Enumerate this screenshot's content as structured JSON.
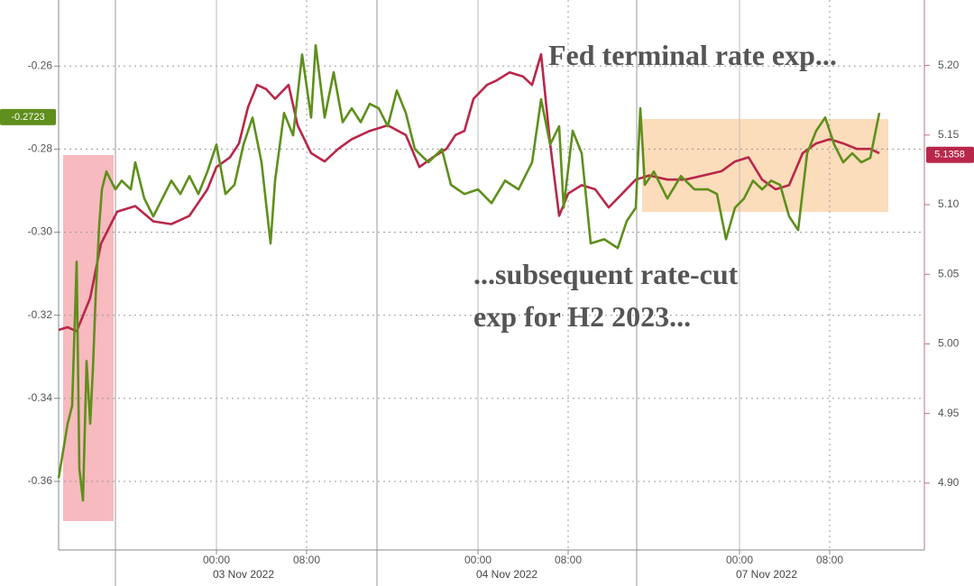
{
  "chart_data": {
    "type": "line",
    "xlim": [
      0,
      96
    ],
    "xticks": [
      {
        "value": 17.5,
        "label": "00:00"
      },
      {
        "value": 27.5,
        "label": "08:00"
      },
      {
        "value": 46.5,
        "label": "00:00"
      },
      {
        "value": 56.5,
        "label": "08:00"
      },
      {
        "value": 75.5,
        "label": "00:00"
      },
      {
        "value": 85.5,
        "label": "08:00"
      }
    ],
    "x_dates": [
      "03 Nov 2022",
      "04 Nov 2022",
      "07 Nov 2022"
    ],
    "ylim": [
      -0.3765,
      -0.2441
    ],
    "yticks": [
      -0.36,
      -0.34,
      -0.32,
      {
        "value": -0.3,
        "label": "-0.30"
      },
      -0.28,
      -0.26
    ],
    "y2lim": [
      4.852,
      5.247
    ],
    "y2ticks": [
      {
        "value": 4.9,
        "label": "4.90"
      },
      4.95,
      {
        "value": 5,
        "label": "5.00"
      },
      5.05,
      {
        "value": 5.1,
        "label": "5.10"
      },
      5.15,
      {
        "value": 5.2,
        "label": "5.20"
      }
    ],
    "grid": true,
    "series": [
      {
        "color": "#b8274a",
        "axis": "y2",
        "last_value": 5.1358,
        "x": [
          0,
          1,
          2,
          3.5,
          4.7,
          6.5,
          8.5,
          10.5,
          12.5,
          14.5,
          16.5,
          17.5,
          19,
          20,
          21,
          22,
          23,
          24,
          25.5,
          26.5,
          28,
          29.5,
          31,
          32.5,
          34.5,
          36.5,
          38.5,
          40,
          41.5,
          43,
          44,
          45,
          46,
          47.5,
          48.5,
          50,
          51.5,
          52.5,
          53.5,
          54.5,
          55.5,
          56.5,
          58,
          59.5,
          61,
          62.5,
          64,
          65.5,
          67.5,
          69.5,
          71.5,
          73.5,
          75,
          76.5,
          78,
          79.5,
          81,
          82.5,
          84,
          85.5,
          87,
          88.5,
          90,
          91
        ],
        "values": [
          5.01,
          5.012,
          5.009,
          5.033,
          5.072,
          5.095,
          5.099,
          5.088,
          5.086,
          5.092,
          5.111,
          5.127,
          5.134,
          5.144,
          5.17,
          5.186,
          5.183,
          5.176,
          5.186,
          5.157,
          5.137,
          5.131,
          5.14,
          5.147,
          5.153,
          5.157,
          5.15,
          5.127,
          5.134,
          5.14,
          5.15,
          5.153,
          5.176,
          5.186,
          5.189,
          5.195,
          5.192,
          5.186,
          5.208,
          5.144,
          5.092,
          5.108,
          5.114,
          5.111,
          5.098,
          5.108,
          5.118,
          5.121,
          5.118,
          5.118,
          5.121,
          5.124,
          5.131,
          5.134,
          5.118,
          5.111,
          5.114,
          5.137,
          5.144,
          5.147,
          5.144,
          5.14,
          5.14,
          5.137
        ]
      },
      {
        "color": "#5f8f1c",
        "last_value": -0.2723,
        "x": [
          0,
          0.5,
          1,
          1.5,
          2,
          2.3,
          2.7,
          3.1,
          3.5,
          3.8,
          4.1,
          4.5,
          4.8,
          5.3,
          5.8,
          6.3,
          7,
          8,
          8.5,
          9.5,
          10.5,
          11.5,
          12.5,
          13.5,
          14.5,
          15.5,
          16.5,
          17.5,
          18.5,
          19.5,
          20.5,
          21.5,
          22.5,
          23.5,
          24,
          25,
          26,
          27,
          28,
          28.5,
          29.5,
          30.5,
          31.5,
          32.5,
          33.5,
          34.5,
          35.5,
          36.5,
          37.5,
          38.5,
          39.5,
          41,
          42.5,
          43.5,
          45,
          46.5,
          48,
          49.5,
          51,
          52.5,
          53.5,
          54.5,
          55.5,
          56,
          57,
          58,
          59,
          60.5,
          62,
          63,
          64,
          64.5,
          65,
          66,
          67.5,
          69,
          70.5,
          72,
          73,
          74,
          75,
          76,
          77,
          78,
          79,
          80,
          81,
          82,
          83,
          84,
          85,
          86,
          87,
          88,
          89,
          90,
          91
        ],
        "values": [
          -0.3592,
          -0.3527,
          -0.3461,
          -0.3418,
          -0.3071,
          -0.357,
          -0.3646,
          -0.331,
          -0.3461,
          -0.3331,
          -0.3158,
          -0.2984,
          -0.2897,
          -0.2854,
          -0.2876,
          -0.2897,
          -0.2876,
          -0.2897,
          -0.2832,
          -0.2919,
          -0.2962,
          -0.2919,
          -0.2876,
          -0.2908,
          -0.2865,
          -0.2908,
          -0.2854,
          -0.2789,
          -0.2908,
          -0.2886,
          -0.2789,
          -0.2724,
          -0.2832,
          -0.3027,
          -0.2876,
          -0.2713,
          -0.2767,
          -0.2572,
          -0.2724,
          -0.255,
          -0.2724,
          -0.2615,
          -0.2735,
          -0.2702,
          -0.2735,
          -0.2691,
          -0.2702,
          -0.2745,
          -0.2659,
          -0.2713,
          -0.28,
          -0.2832,
          -0.28,
          -0.2886,
          -0.2908,
          -0.2897,
          -0.293,
          -0.2876,
          -0.2897,
          -0.2832,
          -0.268,
          -0.2789,
          -0.2745,
          -0.2941,
          -0.2756,
          -0.281,
          -0.3027,
          -0.3017,
          -0.3038,
          -0.2973,
          -0.2941,
          -0.2702,
          -0.2886,
          -0.2854,
          -0.2919,
          -0.2865,
          -0.2897,
          -0.2897,
          -0.2908,
          -0.3017,
          -0.2941,
          -0.2919,
          -0.2876,
          -0.2897,
          -0.2876,
          -0.2886,
          -0.2962,
          -0.2995,
          -0.281,
          -0.2756,
          -0.2724,
          -0.2789,
          -0.2832,
          -0.281,
          -0.2832,
          -0.2821,
          -0.2713
        ]
      }
    ],
    "annotations": [
      {
        "text": "Fed terminal rate exp...",
        "color": "#a8203f"
      },
      {
        "text": "...subsequent rate-cut",
        "color": "#5f8f1c"
      },
      {
        "text": "exp for H2 2023...",
        "color": "#5f8f1c"
      }
    ]
  }
}
